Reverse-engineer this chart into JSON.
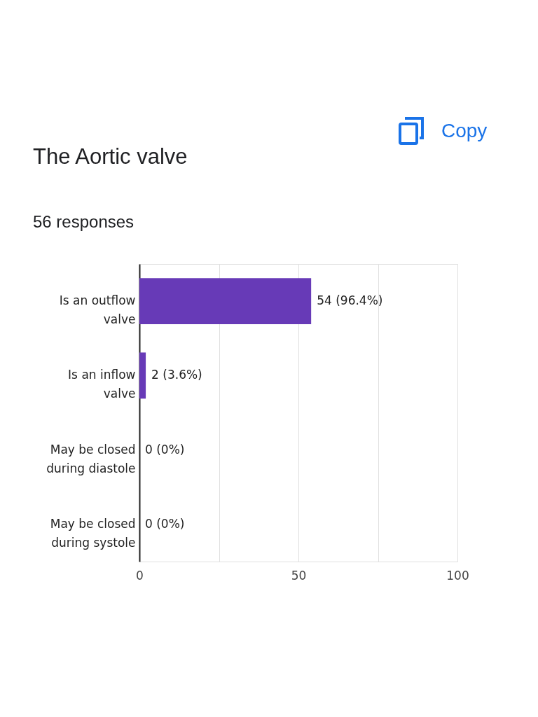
{
  "chart_data": {
    "type": "bar",
    "orientation": "horizontal",
    "title": "The Aortic valve",
    "subtitle": "56 responses",
    "annotations": [
      "Copy"
    ],
    "categories": [
      "Is an outflow valve",
      "Is an inflow valve",
      "May be closed during diastole",
      "May be closed during systole"
    ],
    "values": [
      54,
      2,
      0,
      0
    ],
    "value_labels": [
      "54 (96.4%)",
      "2 (3.6%)",
      "0 (0%)",
      "0 (0%)"
    ],
    "color": "#673ab7",
    "xlim": [
      0,
      100
    ],
    "xticks": [
      0,
      {
        "value": 25,
        "label": null
      },
      50,
      {
        "value": 75,
        "label": null
      },
      100
    ],
    "grid": "x"
  }
}
